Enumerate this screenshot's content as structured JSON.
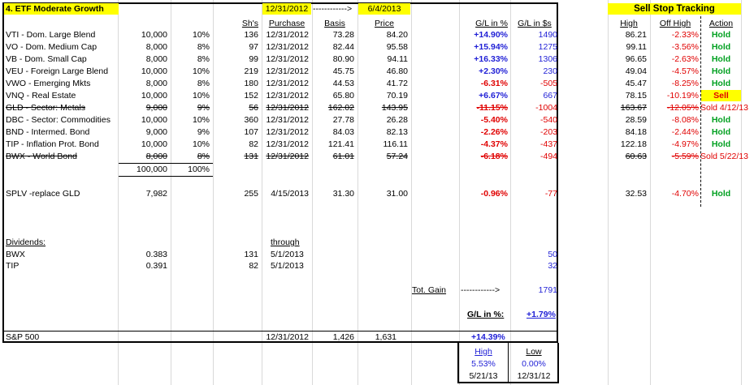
{
  "title": "4. ETF Moderate Growth",
  "header": {
    "date_purchase": "12/31/2012",
    "arrow": "------------>",
    "date_current": "6/4/2013",
    "sell_stop": "Sell Stop Tracking",
    "cols": {
      "shares": "Sh's",
      "purchase": "Purchase",
      "basis": "Basis",
      "price": "Price",
      "gl_pct": "G/L in %",
      "gl_dollars": "G/L in $s",
      "high": "High",
      "off_high": "Off High",
      "action": "Action"
    }
  },
  "rows": [
    {
      "name": "VTI - Dom. Large Blend",
      "alloc": "10,000",
      "pct": "10%",
      "shares": "136",
      "date": "12/31/2012",
      "basis": "73.28",
      "price": "84.20",
      "glp": "+14.90%",
      "gld": "1490",
      "high": "86.21",
      "off": "-2.33%",
      "action": "Hold",
      "pos": true,
      "strike": false
    },
    {
      "name": "VO - Dom. Medium Cap",
      "alloc": "8,000",
      "pct": "8%",
      "shares": "97",
      "date": "12/31/2012",
      "basis": "82.44",
      "price": "95.58",
      "glp": "+15.94%",
      "gld": "1275",
      "high": "99.11",
      "off": "-3.56%",
      "action": "Hold",
      "pos": true,
      "strike": false
    },
    {
      "name": "VB - Dom. Small Cap",
      "alloc": "8,000",
      "pct": "8%",
      "shares": "99",
      "date": "12/31/2012",
      "basis": "80.90",
      "price": "94.11",
      "glp": "+16.33%",
      "gld": "1306",
      "high": "96.65",
      "off": "-2.63%",
      "action": "Hold",
      "pos": true,
      "strike": false
    },
    {
      "name": "VEU - Foreign Large Blend",
      "alloc": "10,000",
      "pct": "10%",
      "shares": "219",
      "date": "12/31/2012",
      "basis": "45.75",
      "price": "46.80",
      "glp": "+2.30%",
      "gld": "230",
      "high": "49.04",
      "off": "-4.57%",
      "action": "Hold",
      "pos": true,
      "strike": false
    },
    {
      "name": "VWO - Emerging Mkts",
      "alloc": "8,000",
      "pct": "8%",
      "shares": "180",
      "date": "12/31/2012",
      "basis": "44.53",
      "price": "41.72",
      "glp": "-6.31%",
      "gld": "-505",
      "high": "45.47",
      "off": "-8.25%",
      "action": "Hold",
      "pos": false,
      "strike": false
    },
    {
      "name": "VNQ - Real Estate",
      "alloc": "10,000",
      "pct": "10%",
      "shares": "152",
      "date": "12/31/2012",
      "basis": "65.80",
      "price": "70.19",
      "glp": "+6.67%",
      "gld": "667",
      "high": "78.15",
      "off": "-10.19%",
      "action": "Sell",
      "pos": true,
      "strike": false,
      "sell": true
    },
    {
      "name": "GLD - Sector: Metals",
      "alloc": "9,000",
      "pct": "9%",
      "shares": "56",
      "date": "12/31/2012",
      "basis": "162.02",
      "price": "143.95",
      "glp": "-11.15%",
      "gld": "-1004",
      "high": "163.67",
      "off": "-12.05%",
      "action": "Sold 4/12/13",
      "pos": false,
      "strike": true
    },
    {
      "name": "DBC - Sector: Commodities",
      "alloc": "10,000",
      "pct": "10%",
      "shares": "360",
      "date": "12/31/2012",
      "basis": "27.78",
      "price": "26.28",
      "glp": "-5.40%",
      "gld": "-540",
      "high": "28.59",
      "off": "-8.08%",
      "action": "Hold",
      "pos": false,
      "strike": false
    },
    {
      "name": "BND - Intermed. Bond",
      "alloc": "9,000",
      "pct": "9%",
      "shares": "107",
      "date": "12/31/2012",
      "basis": "84.03",
      "price": "82.13",
      "glp": "-2.26%",
      "gld": "-203",
      "high": "84.18",
      "off": "-2.44%",
      "action": "Hold",
      "pos": false,
      "strike": false
    },
    {
      "name": "TIP - Inflation Prot. Bond",
      "alloc": "10,000",
      "pct": "10%",
      "shares": "82",
      "date": "12/31/2012",
      "basis": "121.41",
      "price": "116.11",
      "glp": "-4.37%",
      "gld": "-437",
      "high": "122.18",
      "off": "-4.97%",
      "action": "Hold",
      "pos": false,
      "strike": false
    },
    {
      "name": "BWX - World Bond",
      "alloc": "8,000",
      "pct": "8%",
      "shares": "131",
      "date": "12/31/2012",
      "basis": "61.01",
      "price": "57.24",
      "glp": "-6.18%",
      "gld": "-494",
      "high": "60.63",
      "off": "-5.59%",
      "action": "Sold 5/22/13",
      "pos": false,
      "strike": true
    }
  ],
  "totals": {
    "alloc": "100,000",
    "pct": "100%"
  },
  "splv": {
    "name": "SPLV -replace GLD",
    "alloc": "7,982",
    "shares": "255",
    "date": "4/15/2013",
    "basis": "31.30",
    "price": "31.00",
    "glp": "-0.96%",
    "gld": "-77",
    "high": "32.53",
    "off": "-4.70%",
    "action": "Hold"
  },
  "dividends": {
    "label": "Dividends:",
    "through": "through",
    "items": [
      {
        "name": "BWX",
        "rate": "0.383",
        "shares": "131",
        "date": "5/1/2013",
        "amount": "50"
      },
      {
        "name": "TIP",
        "rate": "0.391",
        "shares": "82",
        "date": "5/1/2013",
        "amount": "32"
      }
    ]
  },
  "tot_gain": {
    "label": "Tot. Gain",
    "arrow": "------------>",
    "value": "1791"
  },
  "gl_pct_total": {
    "label": "G/L in %:",
    "value": "+1.79%"
  },
  "sp500": {
    "name": "S&P 500",
    "date": "12/31/2012",
    "start": "1,426",
    "end": "1,631",
    "glp": "+14.39%"
  },
  "highlow": {
    "high_label": "High",
    "low_label": "Low",
    "high_val": "5.53%",
    "low_val": "0.00%",
    "high_date": "5/21/13",
    "low_date": "12/31/12"
  }
}
